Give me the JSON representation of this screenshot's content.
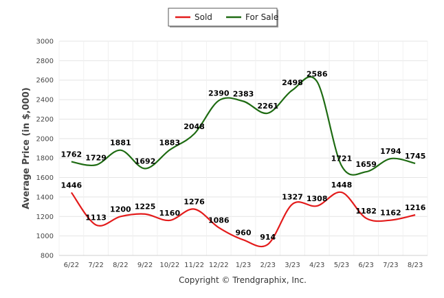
{
  "chart_data": {
    "type": "line",
    "title": "",
    "xlabel": "",
    "ylabel": "Average Price (in $,000)",
    "ylim": [
      800,
      3000
    ],
    "ytick_step": 200,
    "grid": true,
    "legend_position": "top-center",
    "categories": [
      "6/22",
      "7/22",
      "8/22",
      "9/22",
      "10/22",
      "11/22",
      "12/22",
      "1/23",
      "2/23",
      "3/23",
      "4/23",
      "5/23",
      "6/23",
      "7/23",
      "8/23"
    ],
    "series": [
      {
        "name": "Sold",
        "color": "#e31b1b",
        "values": [
          1446,
          1113,
          1200,
          1225,
          1160,
          1276,
          1086,
          960,
          914,
          1327,
          1308,
          1448,
          1182,
          1162,
          1216
        ]
      },
      {
        "name": "For Sale",
        "color": "#1e6b12",
        "values": [
          1762,
          1729,
          1881,
          1692,
          1883,
          2048,
          2390,
          2383,
          2261,
          2498,
          2586,
          1721,
          1659,
          1794,
          1745
        ]
      }
    ],
    "footer": "Copyright © Trendgraphix, Inc."
  }
}
